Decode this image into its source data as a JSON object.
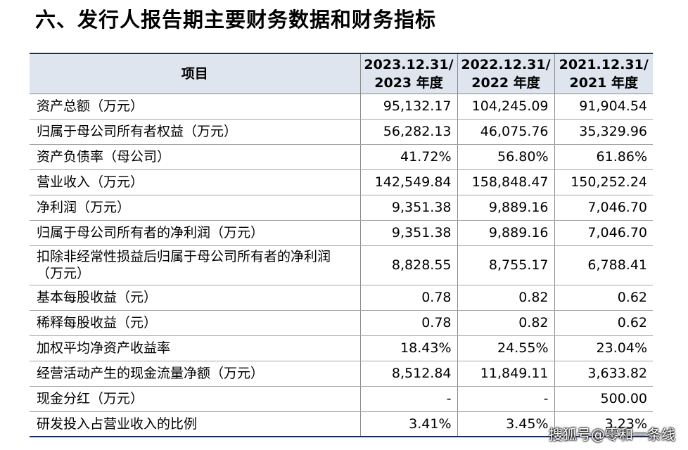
{
  "title": "六、发行人报告期主要财务数据和财务指标",
  "table": {
    "headers": [
      {
        "line1": "项目",
        "line2": ""
      },
      {
        "line1": "2023.12.31/",
        "line2": "2023 年度"
      },
      {
        "line1": "2022.12.31/",
        "line2": "2022 年度"
      },
      {
        "line1": "2021.12.31/",
        "line2": "2021 年度"
      }
    ],
    "rows": [
      [
        "资产总额（万元）",
        "95,132.17",
        "104,245.09",
        "91,904.54"
      ],
      [
        "归属于母公司所有者权益（万元）",
        "56,282.13",
        "46,075.76",
        "35,329.96"
      ],
      [
        "资产负债率（母公司）",
        "41.72%",
        "56.80%",
        "61.86%"
      ],
      [
        "营业收入（万元）",
        "142,549.84",
        "158,848.47",
        "150,252.24"
      ],
      [
        "净利润（万元）",
        "9,351.38",
        "9,889.16",
        "7,046.70"
      ],
      [
        "归属于母公司所有者的净利润（万元）",
        "9,351.38",
        "9,889.16",
        "7,046.70"
      ],
      [
        "扣除非经常性损益后归属于母公司所有者的净利润（万元）",
        "8,828.55",
        "8,755.17",
        "6,788.41"
      ],
      [
        "基本每股收益（元）",
        "0.78",
        "0.82",
        "0.62"
      ],
      [
        "稀释每股收益（元）",
        "0.78",
        "0.82",
        "0.62"
      ],
      [
        "加权平均净资产收益率",
        "18.43%",
        "24.55%",
        "23.04%"
      ],
      [
        "经营活动产生的现金流量净额（万元）",
        "8,512.84",
        "11,849.11",
        "3,633.82"
      ],
      [
        "现金分红（万元）",
        "-",
        "-",
        "500.00"
      ],
      [
        "研发投入占营业收入的比例",
        "3.41%",
        "3.45%",
        "3.23%"
      ]
    ]
  },
  "watermark": "搜狐号@零和一条线"
}
